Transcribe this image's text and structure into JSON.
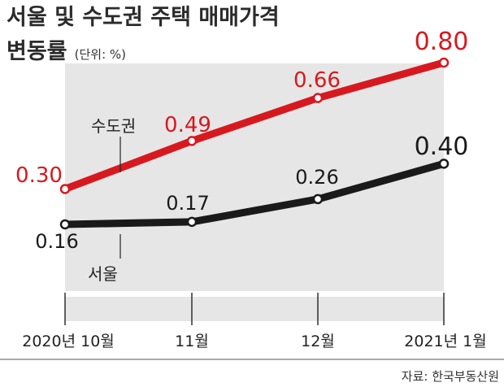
{
  "title_line1": "서울 및 수도권 주택 매매가격",
  "title_line2": "변동률",
  "unit": "(단위: %)",
  "source": "자료: 한국부동산원",
  "colors": {
    "capital": "#d7191f",
    "seoul": "#1a1a1a",
    "panel": "#e6e6e6"
  },
  "chart_data": {
    "type": "line",
    "title": "서울 및 수도권 주택 매매가격 변동률",
    "unit": "(단위: %)",
    "categories": [
      "2020년 10월",
      "11월",
      "12월",
      "2021년 1월"
    ],
    "series": [
      {
        "name": "수도권",
        "values": [
          0.3,
          0.49,
          0.66,
          0.8
        ],
        "labels": [
          "0.30",
          "0.49",
          "0.66",
          "0.80"
        ],
        "color": "#d7191f"
      },
      {
        "name": "서울",
        "values": [
          0.16,
          0.17,
          0.26,
          0.4
        ],
        "labels": [
          "0.16",
          "0.17",
          "0.26",
          "0.40"
        ],
        "color": "#1a1a1a"
      }
    ],
    "ylim": [
      0.1,
      0.85
    ],
    "grid": false,
    "legend": "inline callouts"
  }
}
